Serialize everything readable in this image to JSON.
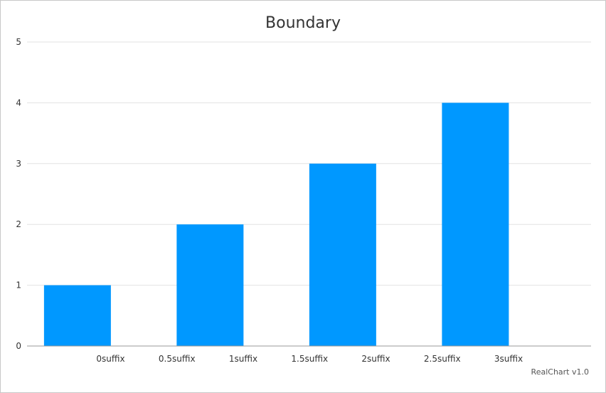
{
  "chart_data": {
    "type": "bar",
    "title": "Boundary",
    "x_tick_labels": [
      "0suffix",
      "0.5suffix",
      "1suffix",
      "1.5suffix",
      "2suffix",
      "2.5suffix",
      "3suffix"
    ],
    "x": [
      0,
      1,
      2,
      3
    ],
    "values": [
      1,
      2,
      3,
      4
    ],
    "ylim": [
      0,
      5
    ],
    "y_ticks": [
      0,
      1,
      2,
      3,
      4,
      5
    ],
    "grid": true,
    "bar_color": "#0098ff"
  },
  "credits": "RealChart v1.0"
}
